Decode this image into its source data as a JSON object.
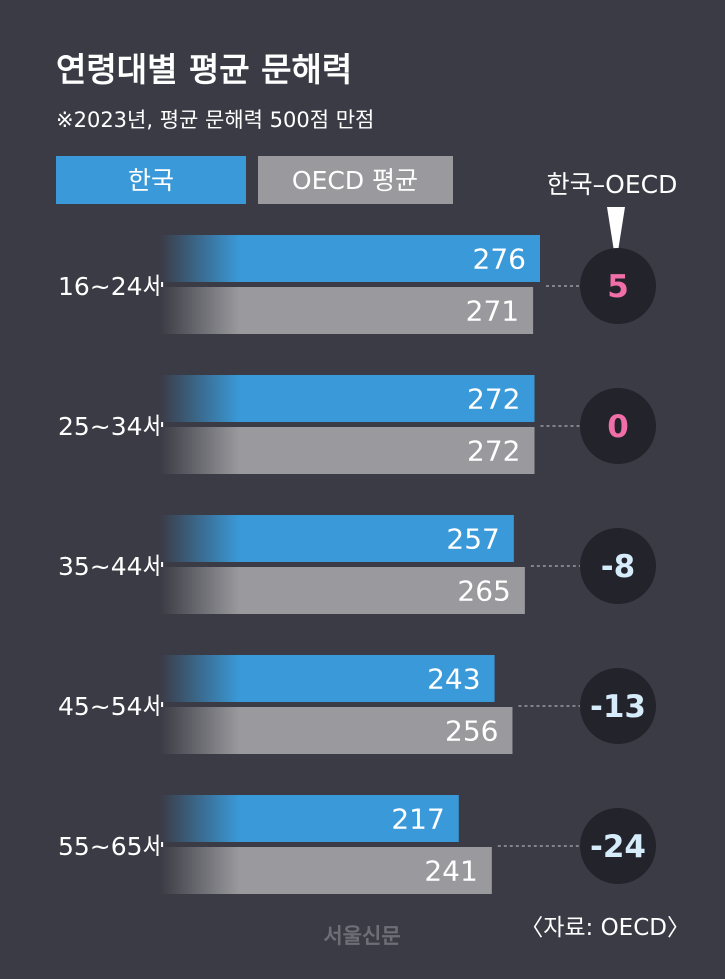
{
  "chart_data": {
    "type": "bar",
    "title": "연령대별 평균 문해력",
    "subtitle": "※2023년, 평균 문해력 500점 만점",
    "categories": [
      "16~24세",
      "25~34세",
      "35~44세",
      "45~54세",
      "55~65세"
    ],
    "series": [
      {
        "name": "한국",
        "values": [
          276,
          272,
          257,
          243,
          217
        ],
        "color": "#3a9ad9"
      },
      {
        "name": "OECD 평균",
        "values": [
          271,
          272,
          265,
          256,
          241
        ],
        "color": "#9a9a9e"
      }
    ],
    "differences": {
      "label": "한국–OECD",
      "values": [
        "5",
        "0",
        "-8",
        "-13",
        "-24"
      ],
      "positive_color": "#f06fa8",
      "negative_color": "#d6ecfa"
    },
    "source": "〈자료: OECD〉",
    "logo": "서울신문",
    "legend_position": "top-left",
    "grid": false
  }
}
